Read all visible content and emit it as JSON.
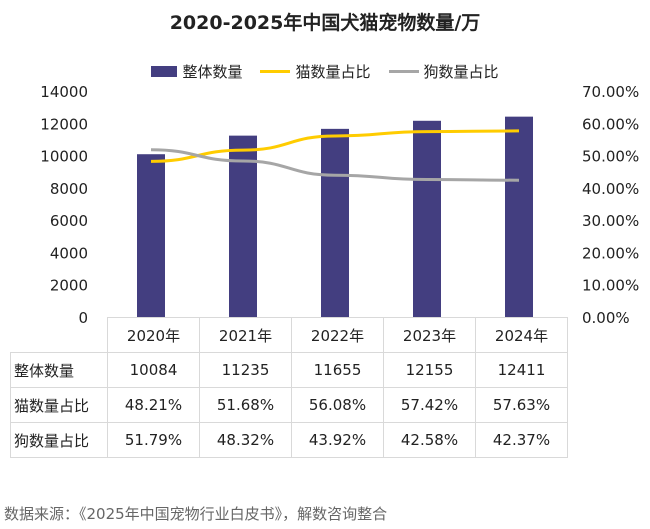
{
  "chart_data": {
    "type": "bar+line",
    "title": "2020-2025年中国犬猫宠物数量/万",
    "categories": [
      "2020年",
      "2021年",
      "2022年",
      "2023年",
      "2024年"
    ],
    "series": [
      {
        "name": "整体数量",
        "type": "bar",
        "axis": "left",
        "color": "#433e80",
        "values": [
          10084,
          11235,
          11655,
          12155,
          12411
        ]
      },
      {
        "name": "猫数量占比",
        "type": "line",
        "axis": "right",
        "color": "#ffcc00",
        "values": [
          48.21,
          51.68,
          56.08,
          57.42,
          57.63
        ]
      },
      {
        "name": "狗数量占比",
        "type": "line",
        "axis": "right",
        "color": "#a6a6a6",
        "values": [
          51.79,
          48.32,
          43.92,
          42.58,
          42.37
        ]
      }
    ],
    "ylim_left": [
      0,
      14000
    ],
    "ylim_right": [
      0,
      70
    ],
    "left_ticks": [
      "0",
      "2000",
      "4000",
      "6000",
      "8000",
      "10000",
      "12000",
      "14000"
    ],
    "right_ticks": [
      "0.00%",
      "10.00%",
      "20.00%",
      "30.00%",
      "40.00%",
      "50.00%",
      "60.00%",
      "70.00%"
    ],
    "legend": "top",
    "grid": false,
    "table": {
      "rows": [
        {
          "label": "整体数量",
          "cells": [
            "10084",
            "11235",
            "11655",
            "12155",
            "12411"
          ]
        },
        {
          "label": "猫数量占比",
          "cells": [
            "48.21%",
            "51.68%",
            "56.08%",
            "57.42%",
            "57.63%"
          ]
        },
        {
          "label": "狗数量占比",
          "cells": [
            "51.79%",
            "48.32%",
            "43.92%",
            "42.58%",
            "42.37%"
          ]
        }
      ]
    }
  },
  "footer": "数据来源：《2025年中国宠物行业白皮书》，解数咨询整合"
}
